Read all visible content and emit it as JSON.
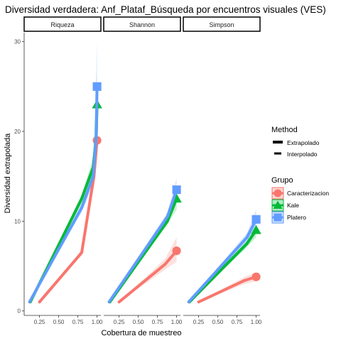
{
  "chart_data": {
    "type": "line",
    "title": "Diversidad verdadera: Anf_Plataf_Búsqueda por encuentros visuales (VES)",
    "xlabel": "Cobertura de muestreo",
    "ylabel": "Diversidad extrapolada",
    "xlim": [
      0.05,
      1.05
    ],
    "ylim": [
      -0.5,
      31
    ],
    "yticks": [
      "0",
      "10",
      "20",
      "30"
    ],
    "xticks": [
      "0.25",
      "0.50",
      "0.75",
      "1.00"
    ],
    "grid": false,
    "legend_position": "right",
    "panels": [
      {
        "label": "Riqueza",
        "series": [
          {
            "group": "Caracterizacion",
            "interp": [
              [
                0.25,
                1.0
              ],
              [
                0.8,
                6.5
              ],
              [
                0.96,
                15.0
              ],
              [
                1.0,
                19.0
              ]
            ],
            "extrap": [],
            "ci": [
              [
                0.25,
                1.0,
                1.0
              ],
              [
                0.8,
                6.2,
                6.8
              ],
              [
                0.96,
                14.0,
                16.0
              ],
              [
                1.0,
                17.5,
                21.0
              ]
            ]
          },
          {
            "group": "Kale",
            "interp": [
              [
                0.13,
                1.0
              ],
              [
                0.8,
                12.5
              ],
              [
                0.95,
                16.0
              ],
              [
                0.99,
                19.5
              ]
            ],
            "extrap": [
              [
                0.99,
                19.5
              ],
              [
                1.0,
                23.0
              ]
            ],
            "ci": [
              [
                0.13,
                1.0,
                1.0
              ],
              [
                0.8,
                12.0,
                13.0
              ],
              [
                0.95,
                15.0,
                17.0
              ],
              [
                1.0,
                19.0,
                26.0
              ]
            ]
          },
          {
            "group": "Platero",
            "interp": [
              [
                0.12,
                1.0
              ],
              [
                0.8,
                11.5
              ],
              [
                0.95,
                15.0
              ],
              [
                0.99,
                19.5
              ]
            ],
            "extrap": [
              [
                0.99,
                19.5
              ],
              [
                1.0,
                25.0
              ]
            ],
            "ci": [
              [
                0.12,
                1.0,
                1.0
              ],
              [
                0.8,
                11.0,
                12.0
              ],
              [
                0.95,
                14.0,
                16.5
              ],
              [
                1.0,
                20.0,
                30.0
              ]
            ]
          }
        ]
      },
      {
        "label": "Shannon",
        "series": [
          {
            "group": "Caracterizacion",
            "interp": [
              [
                0.25,
                1.0
              ],
              [
                0.85,
                5.2
              ]
            ],
            "extrap": [
              [
                0.85,
                5.2
              ],
              [
                1.0,
                6.7
              ]
            ],
            "ci": [
              [
                0.25,
                1.0,
                1.0
              ],
              [
                0.85,
                4.6,
                5.8
              ],
              [
                1.0,
                5.5,
                8.2
              ]
            ]
          },
          {
            "group": "Kale",
            "interp": [
              [
                0.13,
                1.0
              ],
              [
                0.88,
                10.0
              ]
            ],
            "extrap": [
              [
                0.88,
                10.0
              ],
              [
                1.0,
                12.5
              ]
            ],
            "ci": [
              [
                0.13,
                1.0,
                1.0
              ],
              [
                0.88,
                9.6,
                10.5
              ],
              [
                1.0,
                11.3,
                13.6
              ]
            ]
          },
          {
            "group": "Platero",
            "interp": [
              [
                0.12,
                1.0
              ],
              [
                0.88,
                10.5
              ]
            ],
            "extrap": [
              [
                0.88,
                10.5
              ],
              [
                1.0,
                13.5
              ]
            ],
            "ci": [
              [
                0.12,
                1.0,
                1.0
              ],
              [
                0.88,
                10.0,
                11.0
              ],
              [
                1.0,
                12.2,
                14.8
              ]
            ]
          }
        ]
      },
      {
        "label": "Simpson",
        "series": [
          {
            "group": "Caracterizacion",
            "interp": [
              [
                0.25,
                1.0
              ],
              [
                0.85,
                3.4
              ]
            ],
            "extrap": [
              [
                0.85,
                3.4
              ],
              [
                1.0,
                3.8
              ]
            ],
            "ci": [
              [
                0.25,
                1.0,
                1.0
              ],
              [
                0.85,
                3.0,
                3.8
              ],
              [
                1.0,
                3.3,
                4.3
              ]
            ]
          },
          {
            "group": "Kale",
            "interp": [
              [
                0.13,
                1.0
              ],
              [
                0.88,
                7.5
              ]
            ],
            "extrap": [
              [
                0.88,
                7.5
              ],
              [
                1.0,
                9.0
              ]
            ],
            "ci": [
              [
                0.13,
                1.0,
                1.0
              ],
              [
                0.88,
                7.1,
                7.9
              ],
              [
                1.0,
                8.2,
                9.8
              ]
            ]
          },
          {
            "group": "Platero",
            "interp": [
              [
                0.12,
                1.0
              ],
              [
                0.88,
                8.2
              ]
            ],
            "extrap": [
              [
                0.88,
                8.2
              ],
              [
                1.0,
                10.2
              ]
            ],
            "ci": [
              [
                0.12,
                1.0,
                1.0
              ],
              [
                0.88,
                7.7,
                8.7
              ],
              [
                1.0,
                9.2,
                11.3
              ]
            ]
          }
        ]
      }
    ],
    "legend": {
      "method_title": "Method",
      "methods": [
        "Extrapolado",
        "Interpolado"
      ],
      "group_title": "Grupo",
      "groups": [
        "Caracterizacion",
        "Kale",
        "Platero"
      ]
    },
    "colors": {
      "Caracterizacion": "#F8766D",
      "Kale": "#00BA38",
      "Platero": "#619CFF"
    },
    "markers": {
      "Caracterizacion": "circle",
      "Kale": "triangle",
      "Platero": "square"
    }
  }
}
